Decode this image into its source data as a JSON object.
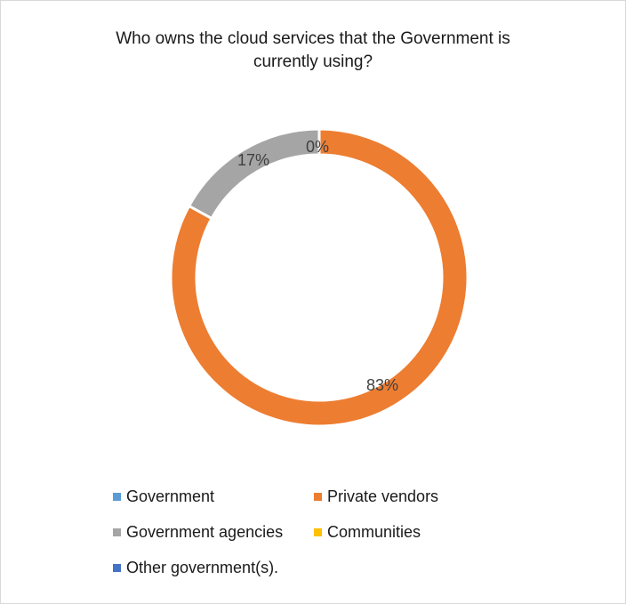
{
  "chart_data": {
    "type": "donut",
    "title": [
      "Who owns the cloud services that the Government is",
      "currently using?"
    ],
    "categories": [
      "Government",
      "Private vendors",
      "Government agencies",
      "Communities",
      "Other government(s)."
    ],
    "values": [
      0,
      83,
      17,
      0,
      0
    ],
    "data_labels": [
      "",
      "83%",
      "17%",
      "",
      "0%"
    ],
    "colors": [
      "#5b9bd5",
      "#ed7d31",
      "#a5a5a5",
      "#ffc000",
      "#4472c4"
    ],
    "legend_position": "bottom"
  }
}
